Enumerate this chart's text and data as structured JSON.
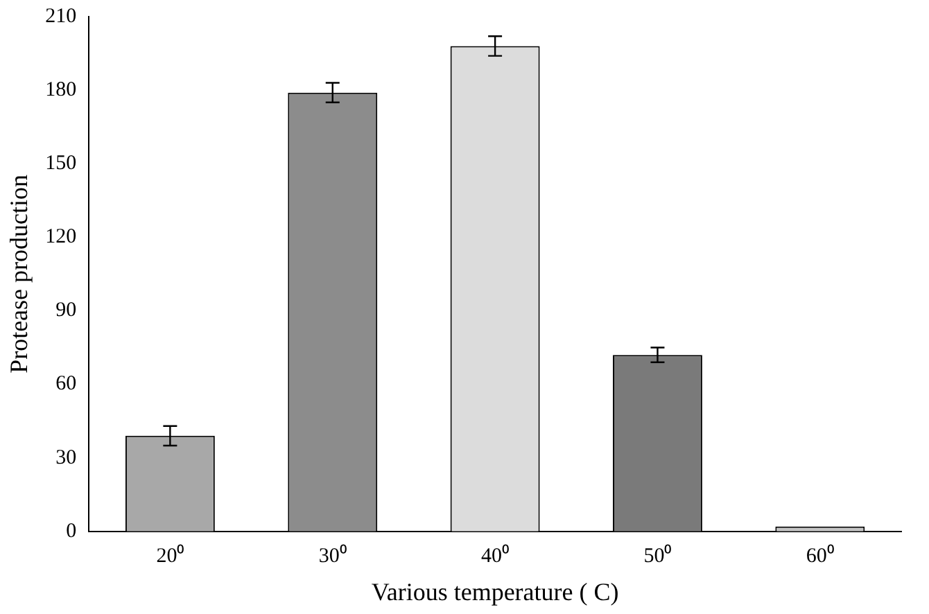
{
  "chart_data": {
    "type": "bar",
    "xlabel": "Various temperature ( C)",
    "ylabel": "Protease production",
    "categories": [
      "20⁰",
      "30⁰",
      "40⁰",
      "50⁰",
      "60⁰"
    ],
    "values": [
      39,
      179,
      198,
      72,
      2
    ],
    "errors": [
      4,
      4,
      4,
      3,
      null
    ],
    "colors": [
      "#a8a8a8",
      "#8c8c8c",
      "#dcdcdc",
      "#7a7a7a",
      "#c4c4c4"
    ],
    "ylim": [
      0,
      210
    ],
    "yticks": [
      0,
      30,
      60,
      90,
      120,
      150,
      180,
      210
    ],
    "grid": false,
    "legend": false
  }
}
